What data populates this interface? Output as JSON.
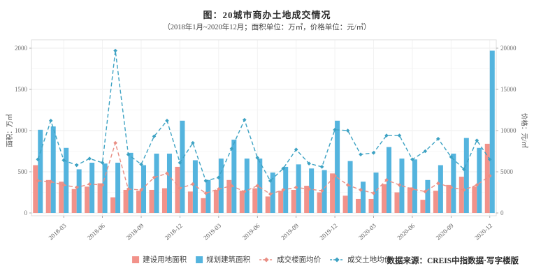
{
  "title": "图：20城市商办土地成交情况",
  "subtitle": "（2018年1月~2020年12月；面积单位：万㎡，价格单位：元/㎡）",
  "source": "数据来源：CREIS中指数据·写字楼版",
  "chart_data": {
    "type": "bar",
    "subtype": "grouped bars with two dashed line series, dual y-axes",
    "x": [
      "2018-01",
      "2018-02",
      "2018-03",
      "2018-04",
      "2018-05",
      "2018-06",
      "2018-07",
      "2018-08",
      "2018-09",
      "2018-10",
      "2018-11",
      "2018-12",
      "2019-01",
      "2019-02",
      "2019-03",
      "2019-04",
      "2019-05",
      "2019-06",
      "2019-07",
      "2019-08",
      "2019-09",
      "2019-10",
      "2019-11",
      "2019-12",
      "2020-01",
      "2020-02",
      "2020-03",
      "2020-04",
      "2020-05",
      "2020-06",
      "2020-07",
      "2020-08",
      "2020-09",
      "2020-10",
      "2020-11",
      "2020-12"
    ],
    "x_ticks": [
      "2018-03",
      "2018-06",
      "2018-09",
      "2018-12",
      "2019-03",
      "2019-06",
      "2019-09",
      "2019-12",
      "2020-03",
      "2020-06",
      "2020-09",
      "2020-12"
    ],
    "series": [
      {
        "name": "建设用地面积",
        "kind": "bar",
        "axis": "left",
        "color": "#F2928A",
        "values": [
          580,
          400,
          380,
          290,
          320,
          360,
          190,
          280,
          270,
          280,
          300,
          560,
          260,
          180,
          280,
          400,
          270,
          300,
          200,
          270,
          280,
          330,
          250,
          480,
          210,
          170,
          170,
          350,
          250,
          310,
          160,
          270,
          340,
          440,
          320,
          840
        ]
      },
      {
        "name": "规划建筑面积",
        "kind": "bar",
        "axis": "left",
        "color": "#54B4DE",
        "values": [
          1010,
          1050,
          790,
          530,
          610,
          600,
          610,
          730,
          580,
          720,
          720,
          1120,
          640,
          400,
          660,
          890,
          660,
          660,
          490,
          560,
          590,
          540,
          520,
          1120,
          630,
          380,
          490,
          800,
          660,
          650,
          400,
          580,
          720,
          910,
          790,
          1970
        ]
      },
      {
        "name": "成交楼面均价",
        "kind": "line",
        "axis": "right",
        "color": "#E98E84",
        "values": [
          3900,
          3800,
          3400,
          3100,
          3500,
          3400,
          8500,
          2900,
          2800,
          4300,
          4800,
          3000,
          3500,
          2400,
          2900,
          3300,
          2600,
          3300,
          2300,
          2800,
          3100,
          2900,
          2700,
          4500,
          3400,
          2800,
          2400,
          4000,
          3400,
          2900,
          2600,
          3600,
          3100,
          2800,
          3400,
          4500
        ]
      },
      {
        "name": "成交土地均价",
        "kind": "line",
        "axis": "right",
        "color": "#3DA2C3",
        "values": [
          6500,
          11200,
          6400,
          5800,
          6600,
          6100,
          19700,
          7100,
          5900,
          9300,
          11200,
          6100,
          8500,
          3900,
          4300,
          7800,
          11300,
          6700,
          3900,
          5400,
          7700,
          6000,
          5600,
          10100,
          10000,
          7100,
          7300,
          9400,
          9400,
          6500,
          7500,
          9000,
          6800,
          5300,
          8800,
          6500
        ]
      }
    ],
    "left_axis": {
      "label": "面积：万㎡",
      "ticks": [
        0,
        500,
        1000,
        1500,
        2000
      ],
      "max": 2000
    },
    "right_axis": {
      "label": "价格：元/㎡",
      "ticks": [
        0,
        5000,
        10000,
        15000,
        20000
      ],
      "max": 20000
    },
    "grid": true,
    "legend_position": "bottom"
  }
}
